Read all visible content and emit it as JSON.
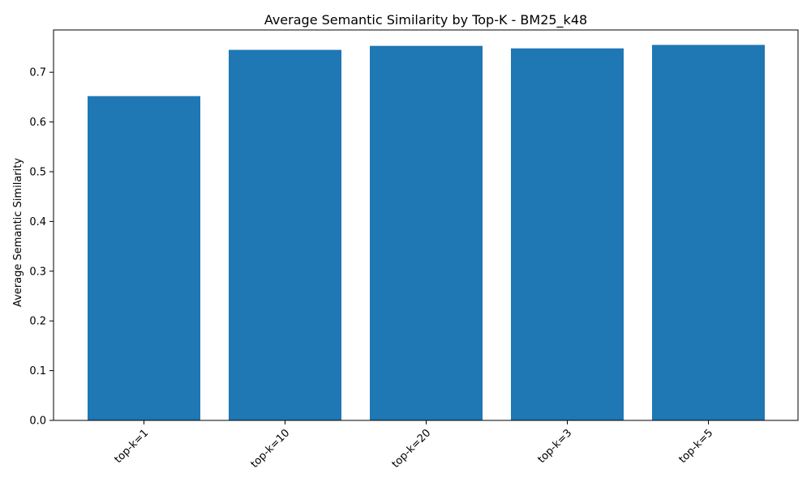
{
  "chart_data": {
    "type": "bar",
    "title": "Average Semantic Similarity by Top-K - BM25_k48",
    "xlabel": "",
    "ylabel": "Average Semantic Similarity",
    "categories": [
      "top-k=1",
      "top-k=10",
      "top-k=20",
      "top-k=3",
      "top-k=5"
    ],
    "values": [
      0.652,
      0.745,
      0.753,
      0.748,
      0.755
    ],
    "ylim": [
      0,
      0.785
    ],
    "yticks": [
      0.0,
      0.1,
      0.2,
      0.3,
      0.4,
      0.5,
      0.6,
      0.7
    ],
    "ytick_labels": [
      "0.0",
      "0.1",
      "0.2",
      "0.3",
      "0.4",
      "0.5",
      "0.6",
      "0.7"
    ],
    "grid": false,
    "bar_color": "#1f77b4"
  }
}
